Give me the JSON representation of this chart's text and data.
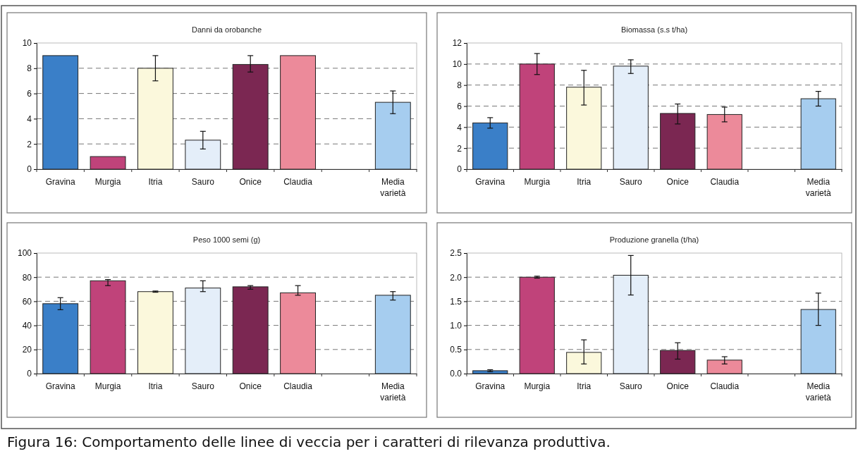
{
  "chart_data": [
    {
      "type": "bar",
      "title": "Danni da orobanche",
      "categories": [
        "Gravina",
        "Murgia",
        "Itria",
        "Sauro",
        "Onice",
        "Claudia",
        null,
        "Media varietà"
      ],
      "colors": [
        "#3a7fc8",
        "#c0437a",
        "#fbf8dc",
        "#e4eef9",
        "#7b2752",
        "#ec8a9a",
        null,
        "#a6cdef"
      ],
      "values": [
        9,
        1,
        8,
        2.3,
        8.3,
        9,
        null,
        5.3
      ],
      "errors": [
        null,
        null,
        [
          7,
          9
        ],
        [
          1.6,
          3
        ],
        [
          7.7,
          9
        ],
        null,
        null,
        [
          4.4,
          6.2
        ]
      ],
      "ylim": [
        0,
        10
      ],
      "yticks": [
        0,
        2,
        4,
        6,
        8,
        10
      ],
      "grid": "y"
    },
    {
      "type": "bar",
      "title": "Biomassa (s.s t/ha)",
      "categories": [
        "Gravina",
        "Murgia",
        "Itria",
        "Sauro",
        "Onice",
        "Claudia",
        null,
        "Media varietà"
      ],
      "colors": [
        "#3a7fc8",
        "#c0437a",
        "#fbf8dc",
        "#e4eef9",
        "#7b2752",
        "#ec8a9a",
        null,
        "#a6cdef"
      ],
      "values": [
        4.4,
        10,
        7.8,
        9.8,
        5.3,
        5.2,
        null,
        6.7
      ],
      "errors": [
        [
          3.9,
          4.9
        ],
        [
          9,
          11
        ],
        [
          6.1,
          9.4
        ],
        [
          9.1,
          10.4
        ],
        [
          4.3,
          6.2
        ],
        [
          4.5,
          5.9
        ],
        null,
        [
          6,
          7.4
        ]
      ],
      "ylim": [
        0,
        12
      ],
      "yticks": [
        0,
        2,
        4,
        6,
        8,
        10,
        12
      ],
      "grid": "y"
    },
    {
      "type": "bar",
      "title": "Peso 1000 semi (g)",
      "categories": [
        "Gravina",
        "Murgia",
        "Itria",
        "Sauro",
        "Onice",
        "Claudia",
        null,
        "Media varietà"
      ],
      "colors": [
        "#3a7fc8",
        "#c0437a",
        "#fbf8dc",
        "#e4eef9",
        "#7b2752",
        "#ec8a9a",
        null,
        "#a6cdef"
      ],
      "values": [
        58,
        77,
        68,
        71,
        72,
        67,
        null,
        65
      ],
      "errors": [
        [
          53,
          63
        ],
        [
          73,
          78
        ],
        [
          67.5,
          68.5
        ],
        [
          68,
          77
        ],
        [
          70,
          73
        ],
        [
          65,
          73
        ],
        null,
        [
          61,
          68
        ]
      ],
      "ylim": [
        0,
        100
      ],
      "yticks": [
        0,
        20,
        40,
        60,
        80,
        100
      ],
      "grid": "y"
    },
    {
      "type": "bar",
      "title": "Produzione granella (t/ha)",
      "categories": [
        "Gravina",
        "Murgia",
        "Itria",
        "Sauro",
        "Onice",
        "Claudia",
        null,
        "Media varietà"
      ],
      "colors": [
        "#3a7fc8",
        "#c0437a",
        "#fbf8dc",
        "#e4eef9",
        "#7b2752",
        "#ec8a9a",
        null,
        "#a6cdef"
      ],
      "values": [
        0.06,
        2.0,
        0.44,
        2.04,
        0.48,
        0.28,
        null,
        1.33
      ],
      "errors": [
        [
          0.04,
          0.08
        ],
        [
          1.98,
          2.02
        ],
        [
          0.2,
          0.7
        ],
        [
          1.63,
          2.45
        ],
        [
          0.3,
          0.64
        ],
        [
          0.2,
          0.35
        ],
        null,
        [
          1.0,
          1.67
        ]
      ],
      "ylim": [
        0,
        2.5
      ],
      "yticks": [
        {
          "value": 0,
          "label": "0.0"
        },
        {
          "value": 0.5,
          "label": "0.5"
        },
        {
          "value": 1,
          "label": "1.0"
        },
        {
          "value": 1.5,
          "label": "1.5"
        },
        {
          "value": 2,
          "label": "2.0"
        },
        2.5
      ],
      "grid": "y",
      "annotations": [
        "Figura 16: Comportamento delle linee di veccia per i caratteri di rilevanza produttiva."
      ]
    }
  ]
}
